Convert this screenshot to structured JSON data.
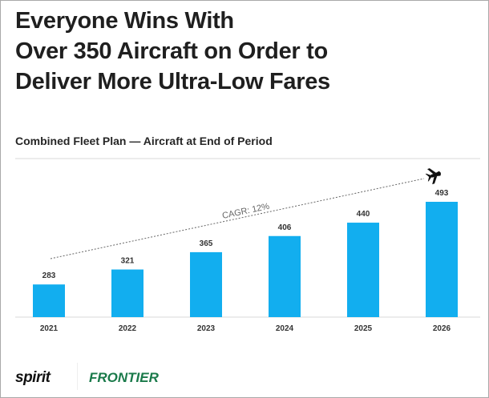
{
  "slide": {
    "title_lines": [
      "Everyone Wins With",
      "Over 350 Aircraft on Order to",
      "Deliver More Ultra-Low Fares"
    ],
    "logos": {
      "spirit": "spirit",
      "frontier": "FRONTIER"
    }
  },
  "chart_data": {
    "type": "bar",
    "title": "Combined Fleet Plan — Aircraft at End of Period",
    "categories": [
      "2021",
      "2022",
      "2023",
      "2024",
      "2025",
      "2026"
    ],
    "values": [
      283,
      321,
      365,
      406,
      440,
      493
    ],
    "annotation": "CAGR: 12%",
    "bar_color": "#12aeef",
    "ylim": [
      200,
      520
    ],
    "grid": false,
    "xlabel": "",
    "ylabel": ""
  }
}
